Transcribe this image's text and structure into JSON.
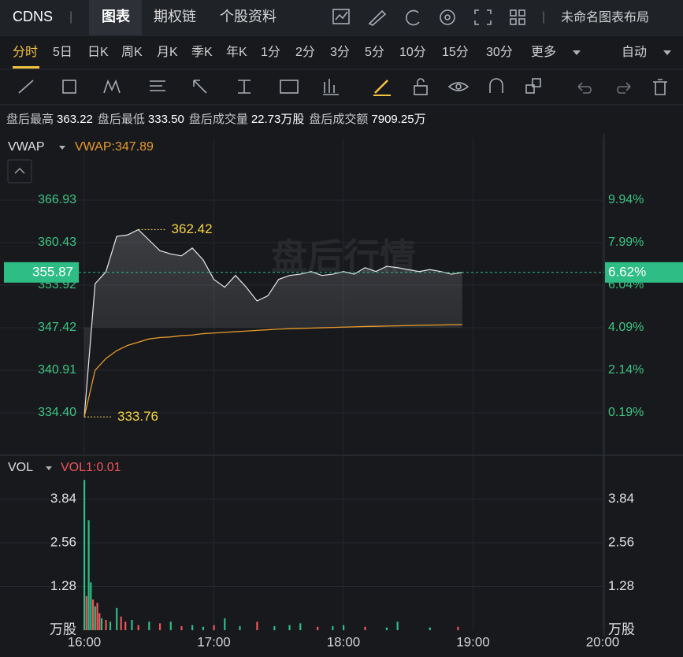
{
  "header": {
    "symbol": "CDNS",
    "separator": "|",
    "tabs": [
      "图表",
      "期权链",
      "个股资料"
    ],
    "layout_name": "未命名图表布局"
  },
  "periods": {
    "items": [
      "分时",
      "5日",
      "日K",
      "周K",
      "月K",
      "季K",
      "年K",
      "1分",
      "2分",
      "3分",
      "5分",
      "10分",
      "15分",
      "30分",
      "更多"
    ],
    "selected": 0,
    "scale_mode": "自动"
  },
  "stats": [
    {
      "label": "盘后最高",
      "value": "363.22"
    },
    {
      "label": "盘后最低",
      "value": "333.50"
    },
    {
      "label": "盘后成交量",
      "value": "22.73万股"
    },
    {
      "label": "盘后成交额",
      "value": "7909.25万"
    }
  ],
  "chart_data": [
    {
      "type": "line",
      "indicator_label": "VWAP:347.89",
      "watermark": "盘后行情",
      "x": [
        "16:00",
        "16:05",
        "16:10",
        "16:15",
        "16:20",
        "16:25",
        "16:30",
        "16:35",
        "16:40",
        "16:45",
        "16:50",
        "16:55",
        "17:00",
        "17:05",
        "17:10",
        "17:15",
        "17:20",
        "17:25",
        "17:30",
        "17:35",
        "17:40",
        "17:45",
        "17:50",
        "17:55",
        "18:00",
        "18:05",
        "18:10",
        "18:15",
        "18:20",
        "18:25",
        "18:30",
        "18:35",
        "18:40",
        "18:45",
        "18:50",
        "18:55"
      ],
      "series": [
        {
          "color": "#e8e8e8",
          "values": [
            333.76,
            354.15,
            355.96,
            361.38,
            361.6,
            362.42,
            360.8,
            359.2,
            358.7,
            358.4,
            359.6,
            357.8,
            354.8,
            353.6,
            355.4,
            353.6,
            351.5,
            352.3,
            354.8,
            355.4,
            355.6,
            356.0,
            355.4,
            355.6,
            356.0,
            355.6,
            356.6,
            356.0,
            356.8,
            356.6,
            356.3,
            356.0,
            356.3,
            356.0,
            355.6,
            355.87
          ]
        },
        {
          "name": "VWAP",
          "color": "#e89a2c",
          "values": [
            333.76,
            340.9,
            342.7,
            343.9,
            344.7,
            345.2,
            345.7,
            345.9,
            346.0,
            346.2,
            346.3,
            346.5,
            346.6,
            346.7,
            346.8,
            346.9,
            347.0,
            347.1,
            347.2,
            347.25,
            347.3,
            347.35,
            347.4,
            347.45,
            347.5,
            347.55,
            347.6,
            347.63,
            347.67,
            347.7,
            347.74,
            347.77,
            347.8,
            347.83,
            347.86,
            347.89
          ]
        }
      ],
      "annotations": [
        {
          "x": "16:25",
          "value": 362.42
        },
        {
          "x": "16:00",
          "value": 333.76
        }
      ],
      "current": {
        "value": 355.87,
        "pct_label": "6.62%"
      },
      "ylim": [
        327.89,
        376.45
      ],
      "yticks": [
        {
          "value": 334.4,
          "label": "334.40"
        },
        340.91,
        347.42,
        353.92,
        360.43,
        366.93
      ],
      "y2lim": [
        -1.76,
        12.79
      ],
      "y2ticks": [
        {
          "value": 0.19,
          "label": "0.19%"
        },
        {
          "value": 2.14,
          "label": "2.14%"
        },
        {
          "value": 4.09,
          "label": "4.09%"
        },
        {
          "value": 6.04,
          "label": "6.04%"
        },
        {
          "value": 7.99,
          "label": "7.99%"
        },
        {
          "value": 9.94,
          "label": "9.94%"
        }
      ],
      "xlim": [
        "16:00",
        "20:00"
      ],
      "xticks": [
        "16:00",
        "17:00",
        "18:00",
        "19:00",
        "20:00"
      ],
      "grid": true
    },
    {
      "type": "bar",
      "indicator": "VOL",
      "indicator_label": "VOL1:0.01",
      "x": [
        "16:00",
        "16:01",
        "16:02",
        "16:03",
        "16:04",
        "16:05",
        "16:06",
        "16:07",
        "16:08",
        "16:10",
        "16:12",
        "16:15",
        "16:17",
        "16:19",
        "16:22",
        "16:25",
        "16:30",
        "16:35",
        "16:40",
        "16:45",
        "16:50",
        "16:55",
        "17:00",
        "17:05",
        "17:12",
        "17:20",
        "17:28",
        "17:35",
        "17:40",
        "17:48",
        "17:55",
        "18:00",
        "18:10",
        "18:20",
        "18:25",
        "18:40",
        "18:53"
      ],
      "series": [
        {
          "values": [
            4.4,
            1.0,
            3.22,
            1.4,
            0.9,
            0.7,
            0.8,
            0.5,
            0.35,
            0.3,
            0.25,
            0.65,
            0.4,
            0.25,
            0.3,
            0.15,
            0.25,
            0.2,
            0.25,
            0.12,
            0.15,
            0.1,
            0.15,
            0.35,
            0.12,
            0.25,
            0.12,
            0.15,
            0.2,
            0.1,
            0.12,
            0.15,
            0.1,
            0.08,
            0.25,
            0.08,
            0.1
          ],
          "colors": [
            "#2ebd85",
            "#f0545a",
            "#2ebd85",
            "#2ebd85",
            "#f0545a",
            "#2ebd85",
            "#f0545a",
            "#f0545a",
            "#2ebd85",
            "#f0545a",
            "#2ebd85",
            "#2ebd85",
            "#f0545a",
            "#f0545a",
            "#2ebd85",
            "#f0545a",
            "#2ebd85",
            "#f0545a",
            "#2ebd85",
            "#f0545a",
            "#2ebd85",
            "#2ebd85",
            "#f0545a",
            "#2ebd85",
            "#2ebd85",
            "#f0545a",
            "#2ebd85",
            "#2ebd85",
            "#2ebd85",
            "#f0545a",
            "#2ebd85",
            "#2ebd85",
            "#f0545a",
            "#2ebd85",
            "#2ebd85",
            "#2ebd85",
            "#f0545a"
          ]
        }
      ],
      "ylim": [
        0,
        5.12
      ],
      "yticks": [
        {
          "value": 0,
          "label": "万股"
        },
        1.28,
        2.56,
        3.84
      ],
      "xlim": [
        "16:00",
        "20:00"
      ],
      "xticks": [
        "16:00",
        "17:00",
        "18:00",
        "19:00",
        "20:00"
      ],
      "grid": true
    }
  ]
}
